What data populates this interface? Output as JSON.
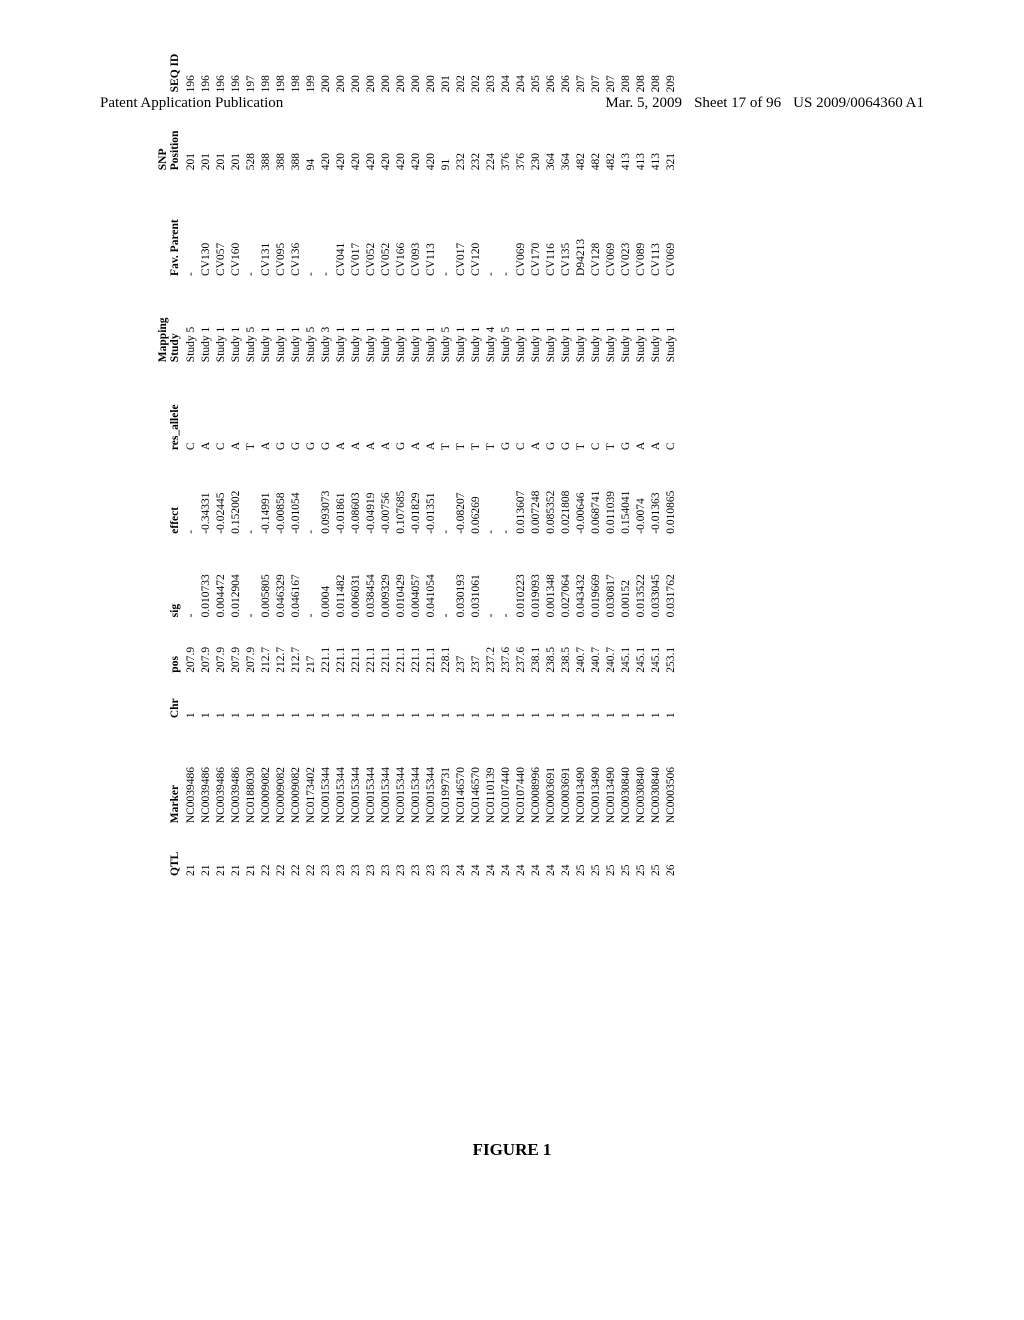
{
  "header": {
    "left": "Patent Application Publication",
    "date": "Mar. 5, 2009",
    "sheet": "Sheet 17 of 96",
    "pubno": "US 2009/0064360 A1"
  },
  "figure_label": "FIGURE 1",
  "table": {
    "columns": [
      "QTL",
      "Marker",
      "Chr",
      "pos",
      "sig",
      "effect",
      "res_allele",
      "Mapping Study",
      "Fav. Parent",
      "SNP Position",
      "SEQ ID"
    ],
    "rows": [
      [
        "21",
        "NC0039486",
        "1",
        "207.9",
        "-",
        "-",
        "C",
        "Study 5",
        "-",
        "201",
        "196"
      ],
      [
        "21",
        "NC0039486",
        "1",
        "207.9",
        "0.010733",
        "-0.34331",
        "A",
        "Study 1",
        "CV130",
        "201",
        "196"
      ],
      [
        "21",
        "NC0039486",
        "1",
        "207.9",
        "0.004472",
        "-0.02445",
        "C",
        "Study 1",
        "CV057",
        "201",
        "196"
      ],
      [
        "21",
        "NC0039486",
        "1",
        "207.9",
        "0.012904",
        "0.152002",
        "A",
        "Study 1",
        "CV160",
        "201",
        "196"
      ],
      [
        "21",
        "NC0188030",
        "1",
        "207.9",
        "-",
        "-",
        "T",
        "Study 5",
        "-",
        "528",
        "197"
      ],
      [
        "22",
        "NC0009082",
        "1",
        "212.7",
        "0.005805",
        "-0.14991",
        "A",
        "Study 1",
        "CV131",
        "388",
        "198"
      ],
      [
        "22",
        "NC0009082",
        "1",
        "212.7",
        "0.046329",
        "-0.00858",
        "G",
        "Study 1",
        "CV095",
        "388",
        "198"
      ],
      [
        "22",
        "NC0009082",
        "1",
        "212.7",
        "0.046167",
        "-0.01054",
        "G",
        "Study 1",
        "CV136",
        "388",
        "198"
      ],
      [
        "22",
        "NC0173402",
        "1",
        "217",
        "-",
        "-",
        "G",
        "Study 5",
        "-",
        "94",
        "199"
      ],
      [
        "23",
        "NC0015344",
        "1",
        "221.1",
        "0.0004",
        "0.093073",
        "G",
        "Study 3",
        "-",
        "420",
        "200"
      ],
      [
        "23",
        "NC0015344",
        "1",
        "221.1",
        "0.011482",
        "-0.01861",
        "A",
        "Study 1",
        "CV041",
        "420",
        "200"
      ],
      [
        "23",
        "NC0015344",
        "1",
        "221.1",
        "0.006031",
        "-0.08603",
        "A",
        "Study 1",
        "CV017",
        "420",
        "200"
      ],
      [
        "23",
        "NC0015344",
        "1",
        "221.1",
        "0.038454",
        "-0.04919",
        "A",
        "Study 1",
        "CV052",
        "420",
        "200"
      ],
      [
        "23",
        "NC0015344",
        "1",
        "221.1",
        "0.009329",
        "-0.00756",
        "A",
        "Study 1",
        "CV052",
        "420",
        "200"
      ],
      [
        "23",
        "NC0015344",
        "1",
        "221.1",
        "0.010429",
        "0.107685",
        "G",
        "Study 1",
        "CV166",
        "420",
        "200"
      ],
      [
        "23",
        "NC0015344",
        "1",
        "221.1",
        "0.004057",
        "-0.01829",
        "A",
        "Study 1",
        "CV093",
        "420",
        "200"
      ],
      [
        "23",
        "NC0015344",
        "1",
        "221.1",
        "0.041054",
        "-0.01351",
        "A",
        "Study 1",
        "CV113",
        "420",
        "200"
      ],
      [
        "23",
        "NC0199731",
        "1",
        "228.1",
        "-",
        "-",
        "T",
        "Study 5",
        "-",
        "91",
        "201"
      ],
      [
        "24",
        "NC0146570",
        "1",
        "237",
        "0.030193",
        "-0.08207",
        "T",
        "Study 1",
        "CV017",
        "232",
        "202"
      ],
      [
        "24",
        "NC0146570",
        "1",
        "237",
        "0.031061",
        "0.06269",
        "T",
        "Study 1",
        "CV120",
        "232",
        "202"
      ],
      [
        "24",
        "NC0110139",
        "1",
        "237.2",
        "-",
        "-",
        "T",
        "Study 4",
        "-",
        "224",
        "203"
      ],
      [
        "24",
        "NC0107440",
        "1",
        "237.6",
        "-",
        "-",
        "G",
        "Study 5",
        "-",
        "376",
        "204"
      ],
      [
        "24",
        "NC0107440",
        "1",
        "237.6",
        "0.010223",
        "0.013607",
        "C",
        "Study 1",
        "CV069",
        "376",
        "204"
      ],
      [
        "24",
        "NC0008996",
        "1",
        "238.1",
        "0.019093",
        "0.007248",
        "A",
        "Study 1",
        "CV170",
        "230",
        "205"
      ],
      [
        "24",
        "NC0003691",
        "1",
        "238.5",
        "0.001348",
        "0.085352",
        "G",
        "Study 1",
        "CV116",
        "364",
        "206"
      ],
      [
        "24",
        "NC0003691",
        "1",
        "238.5",
        "0.027064",
        "0.021808",
        "G",
        "Study 1",
        "CV135",
        "364",
        "206"
      ],
      [
        "25",
        "NC0013490",
        "1",
        "240.7",
        "0.043432",
        "-0.00646",
        "T",
        "Study 1",
        "D94213",
        "482",
        "207"
      ],
      [
        "25",
        "NC0013490",
        "1",
        "240.7",
        "0.019669",
        "0.068741",
        "C",
        "Study 1",
        "CV128",
        "482",
        "207"
      ],
      [
        "25",
        "NC0013490",
        "1",
        "240.7",
        "0.030817",
        "0.011039",
        "T",
        "Study 1",
        "CV069",
        "482",
        "207"
      ],
      [
        "25",
        "NC0030840",
        "1",
        "245.1",
        "0.00152",
        "0.154041",
        "G",
        "Study 1",
        "CV023",
        "413",
        "208"
      ],
      [
        "25",
        "NC0030840",
        "1",
        "245.1",
        "0.013522",
        "-0.0074",
        "A",
        "Study 1",
        "CV089",
        "413",
        "208"
      ],
      [
        "25",
        "NC0030840",
        "1",
        "245.1",
        "0.033045",
        "-0.01363",
        "A",
        "Study 1",
        "CV113",
        "413",
        "208"
      ],
      [
        "26",
        "NC0003506",
        "1",
        "253.1",
        "0.031762",
        "0.010865",
        "C",
        "Study 1",
        "CV069",
        "321",
        "209"
      ]
    ]
  }
}
